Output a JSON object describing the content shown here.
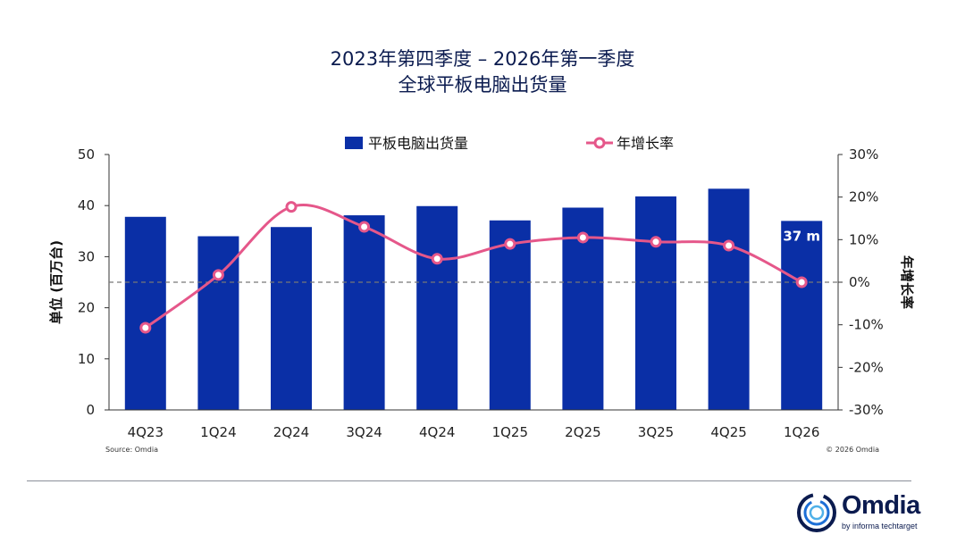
{
  "title": {
    "line1": "2023年第四季度 – 2026年第一季度",
    "line2": "全球平板电脑出货量"
  },
  "source_note": "Source: Omdia",
  "copyright_note": "© 2026 Omdia",
  "logo": {
    "name": "Omdia",
    "tagline": "by informa techtarget"
  },
  "colors": {
    "bar": "#0a2fa6",
    "line": "#e5578a",
    "title": "#0b1b4f",
    "zero_line": "#777777"
  },
  "chart_data": {
    "type": "bar",
    "categories": [
      "4Q23",
      "1Q24",
      "2Q24",
      "3Q24",
      "4Q24",
      "1Q25",
      "2Q25",
      "3Q25",
      "4Q25",
      "1Q26"
    ],
    "series": [
      {
        "name": "平板电脑出货量",
        "type": "bar",
        "axis": "left",
        "values": [
          37.8,
          34.0,
          35.8,
          38.1,
          39.9,
          37.1,
          39.6,
          41.8,
          43.3,
          37.0
        ]
      },
      {
        "name": "年增长率",
        "type": "line",
        "axis": "right",
        "smooth": true,
        "values": [
          -10.7,
          1.7,
          17.7,
          13.0,
          5.5,
          9.0,
          10.5,
          9.5,
          8.6,
          0.0
        ]
      }
    ],
    "y_left": {
      "label": "单位 (百万台)",
      "min": 0,
      "max": 50,
      "ticks": [
        "0",
        "10",
        "20",
        "30",
        "40",
        "50"
      ]
    },
    "y_right": {
      "label": "年增长率",
      "min": -30,
      "max": 30,
      "ticks": [
        "-30%",
        "-20%",
        "-10%",
        "0%",
        "10%",
        "20%",
        "30%"
      ]
    },
    "data_label": {
      "index": 9,
      "text": "37 m"
    },
    "legend": {
      "position": "top"
    },
    "zero_line": "dashed",
    "grid": false
  }
}
